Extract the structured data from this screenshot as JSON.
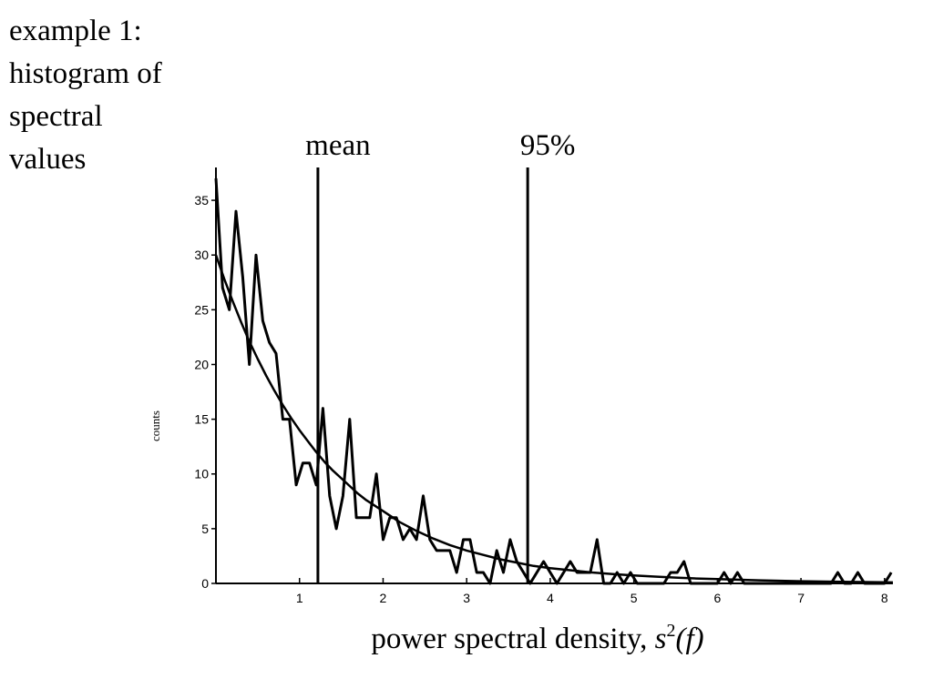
{
  "slide_title_lines": [
    "example 1:",
    "histogram of",
    "spectral",
    "values"
  ],
  "chart_data": {
    "type": "line",
    "title": "",
    "xlabel": "power spectral density, ",
    "xlabel_math": "s",
    "xlabel_sup": "2",
    "xlabel_suffix": "(f)",
    "ylabel": "counts",
    "xlim": [
      0,
      8.1
    ],
    "ylim": [
      0,
      38
    ],
    "x_ticks": [
      1,
      2,
      3,
      4,
      5,
      6,
      7,
      8
    ],
    "y_ticks": [
      0,
      5,
      10,
      15,
      20,
      25,
      30,
      35
    ],
    "grid": false,
    "vertical_lines": [
      {
        "label": "mean",
        "x": 1.22
      },
      {
        "label": "95%",
        "x": 3.73
      }
    ],
    "series": [
      {
        "x": [
          0.0,
          0.08,
          0.16,
          0.24,
          0.32,
          0.4,
          0.48,
          0.56,
          0.64,
          0.72,
          0.8,
          0.88,
          0.96,
          1.04,
          1.12,
          1.2,
          1.28,
          1.36,
          1.44,
          1.52,
          1.6,
          1.68,
          1.76,
          1.84,
          1.92,
          2.0,
          2.08,
          2.16,
          2.24,
          2.32,
          2.4,
          2.48,
          2.56,
          2.64,
          2.72,
          2.8,
          2.88,
          2.96,
          3.04,
          3.12,
          3.2,
          3.28,
          3.36,
          3.44,
          3.52,
          3.6,
          3.68,
          3.76,
          3.84,
          3.92,
          4.0,
          4.08,
          4.16,
          4.24,
          4.32,
          4.4,
          4.48,
          4.56,
          4.64,
          4.72,
          4.8,
          4.88,
          4.96,
          5.04,
          5.12,
          5.2,
          5.28,
          5.36,
          5.44,
          5.52,
          5.6,
          5.68,
          5.76,
          5.84,
          5.92,
          6.0,
          6.08,
          6.16,
          6.24,
          6.32,
          6.4,
          6.48,
          6.56,
          6.64,
          6.72,
          6.8,
          6.88,
          6.96,
          7.04,
          7.12,
          7.2,
          7.28,
          7.36,
          7.44,
          7.52,
          7.6,
          7.68,
          7.76,
          7.84,
          7.92,
          8.0,
          8.08
        ],
        "values": [
          37,
          27,
          25,
          34,
          28,
          20,
          30,
          24,
          22,
          21,
          15,
          15,
          9,
          11,
          11,
          9,
          16,
          8,
          5,
          8,
          15,
          6,
          6,
          6,
          10,
          4,
          6,
          6,
          4,
          5,
          4,
          8,
          4,
          3,
          3,
          3,
          1,
          4,
          4,
          1,
          1,
          0,
          3,
          1,
          4,
          2,
          1,
          0,
          1,
          2,
          1,
          0,
          1,
          2,
          1,
          1,
          1,
          4,
          0,
          0,
          1,
          0,
          1,
          0,
          0,
          0,
          0,
          0,
          1,
          1,
          2,
          0,
          0,
          0,
          0,
          0,
          1,
          0,
          1,
          0,
          0,
          0,
          0,
          0,
          0,
          0,
          0,
          0,
          0,
          0,
          0,
          0,
          0,
          1,
          0,
          0,
          1,
          0,
          0,
          0,
          0,
          1
        ]
      },
      {
        "x": [
          0.0,
          0.1,
          0.2,
          0.3,
          0.4,
          0.5,
          0.6,
          0.7,
          0.8,
          0.9,
          1.0,
          1.1,
          1.2,
          1.3,
          1.4,
          1.5,
          1.6,
          1.7,
          1.8,
          1.9,
          2.0,
          2.2,
          2.4,
          2.6,
          2.8,
          3.0,
          3.2,
          3.4,
          3.6,
          3.8,
          4.0,
          4.25,
          4.5,
          4.75,
          5.0,
          5.25,
          5.5,
          5.75,
          6.0,
          6.5,
          7.0,
          7.5,
          8.0,
          8.1
        ],
        "values": [
          30.0,
          27.8,
          25.8,
          23.9,
          22.1,
          20.5,
          19.0,
          17.6,
          16.3,
          15.1,
          14.0,
          13.0,
          12.0,
          11.1,
          10.3,
          9.6,
          8.9,
          8.2,
          7.6,
          7.1,
          6.6,
          5.6,
          4.8,
          4.1,
          3.5,
          3.0,
          2.6,
          2.2,
          1.9,
          1.6,
          1.4,
          1.2,
          1.0,
          0.85,
          0.72,
          0.62,
          0.53,
          0.45,
          0.39,
          0.28,
          0.2,
          0.14,
          0.1,
          0.09
        ]
      }
    ]
  }
}
